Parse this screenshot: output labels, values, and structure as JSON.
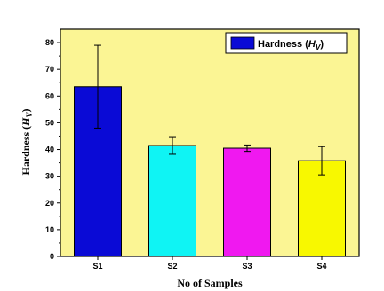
{
  "chart_data": {
    "type": "bar",
    "categories": [
      "S1",
      "S2",
      "S3",
      "S4"
    ],
    "series": [
      {
        "name": "Hardness (H_V)",
        "values": [
          63.5,
          41.5,
          40.5,
          35.8
        ],
        "errors": [
          15.5,
          3.3,
          1.2,
          5.3
        ]
      }
    ],
    "bar_colors": [
      "#0a0ad6",
      "#0ff4f4",
      "#f018f0",
      "#f8f800"
    ],
    "plot_background": "#fbf594",
    "xlabel": "No of Samples",
    "ylabel": "Hardness (H_V)",
    "ylim": [
      0,
      85
    ],
    "yticks": [
      0,
      10,
      20,
      30,
      40,
      50,
      60,
      70,
      80
    ],
    "legend": {
      "position": "top-right",
      "label": "Hardness (H_V)"
    },
    "grid": false
  }
}
